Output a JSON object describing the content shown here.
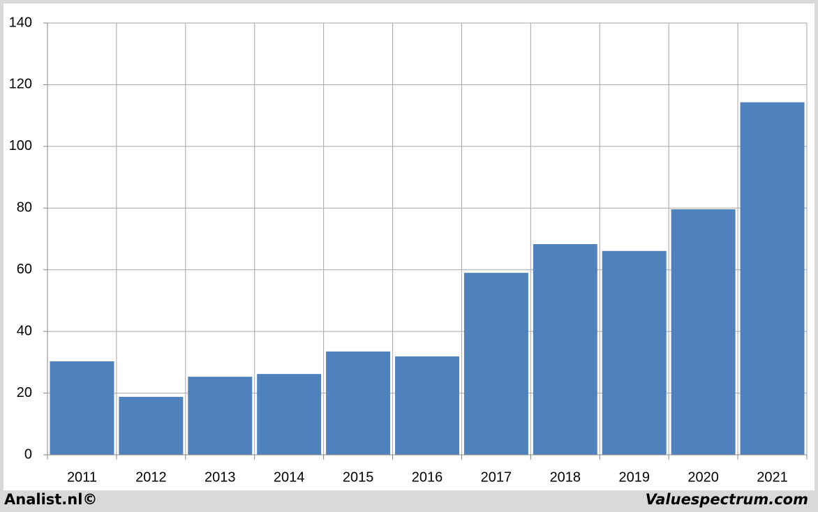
{
  "chart_data": {
    "type": "bar",
    "categories": [
      "2011",
      "2012",
      "2013",
      "2014",
      "2015",
      "2016",
      "2017",
      "2018",
      "2019",
      "2020",
      "2021"
    ],
    "values": [
      30.3,
      18.8,
      25.3,
      26.2,
      33.5,
      31.9,
      59.0,
      68.3,
      66.1,
      79.6,
      114.3
    ],
    "color": "#4f81bd",
    "ylim": [
      0,
      140
    ],
    "yticks": [
      0,
      20,
      40,
      60,
      80,
      100,
      120,
      140
    ],
    "grid": true
  },
  "footer": {
    "left": "Analist.nl©",
    "right": "Valuespectrum.com"
  }
}
